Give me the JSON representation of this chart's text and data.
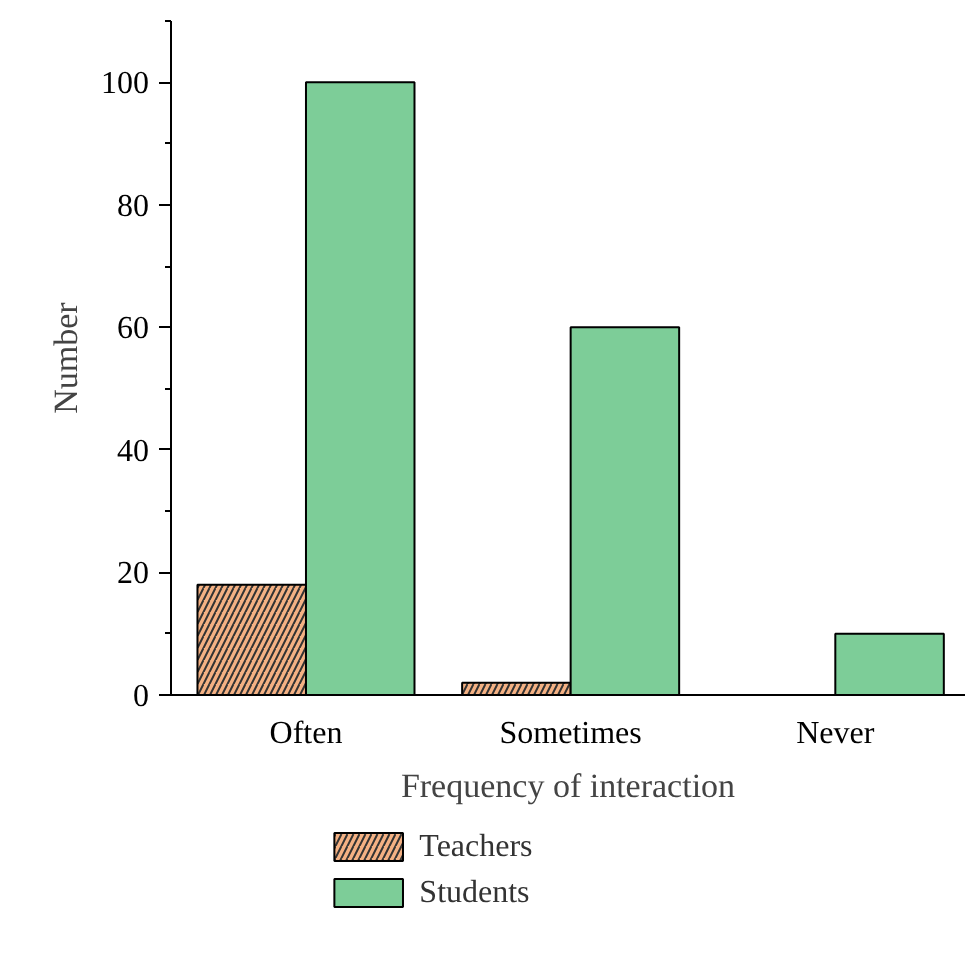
{
  "chart_data": {
    "type": "bar",
    "xlabel": "Frequency of interaction",
    "ylabel": "Number",
    "categories": [
      "Often",
      "Sometimes",
      "Never"
    ],
    "series": [
      {
        "name": "Teachers",
        "color": "#f4b183",
        "values": [
          18,
          2,
          0
        ]
      },
      {
        "name": "Students",
        "color": "#7dcd98",
        "values": [
          100,
          60,
          10
        ]
      }
    ],
    "ylim": [
      0,
      110
    ],
    "yticks": [
      0,
      20,
      40,
      60,
      80,
      100
    ],
    "grid": false,
    "legend": "bottom left"
  }
}
